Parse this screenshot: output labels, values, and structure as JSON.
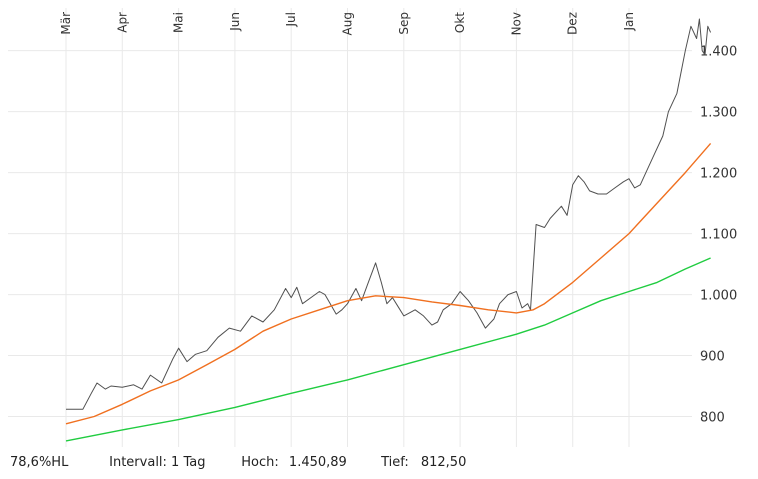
{
  "chart_data": {
    "type": "line",
    "x_labels": [
      "Mär",
      "Apr",
      "Mai",
      "Jun",
      "Jul",
      "Aug",
      "Sep",
      "Okt",
      "Nov",
      "Dez",
      "Jan"
    ],
    "y_ticks": [
      "800",
      "900",
      "1.000",
      "1.100",
      "1.200",
      "1.300",
      "1.400"
    ],
    "ylim": [
      750,
      1470
    ],
    "grid": true,
    "series": [
      {
        "color": "#505050",
        "points": [
          [
            0,
            812
          ],
          [
            0.3,
            812
          ],
          [
            0.45,
            838
          ],
          [
            0.55,
            855
          ],
          [
            0.7,
            845
          ],
          [
            0.8,
            850
          ],
          [
            1.0,
            848
          ],
          [
            1.2,
            852
          ],
          [
            1.35,
            845
          ],
          [
            1.5,
            868
          ],
          [
            1.7,
            855
          ],
          [
            1.9,
            895
          ],
          [
            2.0,
            912
          ],
          [
            2.15,
            890
          ],
          [
            2.3,
            902
          ],
          [
            2.5,
            908
          ],
          [
            2.7,
            930
          ],
          [
            2.9,
            945
          ],
          [
            3.1,
            940
          ],
          [
            3.3,
            965
          ],
          [
            3.5,
            955
          ],
          [
            3.7,
            975
          ],
          [
            3.9,
            1010
          ],
          [
            4.0,
            995
          ],
          [
            4.1,
            1012
          ],
          [
            4.2,
            985
          ],
          [
            4.35,
            995
          ],
          [
            4.5,
            1005
          ],
          [
            4.6,
            1000
          ],
          [
            4.8,
            968
          ],
          [
            4.9,
            975
          ],
          [
            5.0,
            985
          ],
          [
            5.15,
            1010
          ],
          [
            5.25,
            990
          ],
          [
            5.35,
            1015
          ],
          [
            5.5,
            1052
          ],
          [
            5.6,
            1020
          ],
          [
            5.7,
            985
          ],
          [
            5.8,
            995
          ],
          [
            5.9,
            980
          ],
          [
            6.0,
            965
          ],
          [
            6.1,
            970
          ],
          [
            6.2,
            975
          ],
          [
            6.35,
            965
          ],
          [
            6.5,
            950
          ],
          [
            6.6,
            955
          ],
          [
            6.7,
            975
          ],
          [
            6.85,
            985
          ],
          [
            7.0,
            1005
          ],
          [
            7.15,
            990
          ],
          [
            7.3,
            970
          ],
          [
            7.45,
            945
          ],
          [
            7.6,
            960
          ],
          [
            7.7,
            985
          ],
          [
            7.85,
            1000
          ],
          [
            8.0,
            1005
          ],
          [
            8.1,
            978
          ],
          [
            8.2,
            985
          ],
          [
            8.25,
            975
          ],
          [
            8.35,
            1115
          ],
          [
            8.5,
            1110
          ],
          [
            8.6,
            1125
          ],
          [
            8.8,
            1145
          ],
          [
            8.9,
            1130
          ],
          [
            9.0,
            1180
          ],
          [
            9.1,
            1195
          ],
          [
            9.2,
            1185
          ],
          [
            9.3,
            1170
          ],
          [
            9.45,
            1165
          ],
          [
            9.6,
            1165
          ],
          [
            9.75,
            1175
          ],
          [
            9.9,
            1185
          ],
          [
            10.0,
            1190
          ],
          [
            10.1,
            1175
          ],
          [
            10.2,
            1180
          ],
          [
            10.3,
            1200
          ],
          [
            10.45,
            1230
          ],
          [
            10.6,
            1260
          ],
          [
            10.7,
            1300
          ],
          [
            10.85,
            1330
          ],
          [
            11.0,
            1400
          ],
          [
            11.1,
            1440
          ],
          [
            11.2,
            1420
          ],
          [
            11.25,
            1452
          ],
          [
            11.3,
            1400
          ],
          [
            11.35,
            1393
          ],
          [
            11.4,
            1440
          ],
          [
            11.45,
            1430
          ]
        ]
      },
      {
        "color": "#f07020",
        "points": [
          [
            0,
            788
          ],
          [
            0.5,
            800
          ],
          [
            1.0,
            820
          ],
          [
            1.5,
            842
          ],
          [
            2.0,
            860
          ],
          [
            2.5,
            885
          ],
          [
            3.0,
            910
          ],
          [
            3.5,
            940
          ],
          [
            4.0,
            960
          ],
          [
            4.5,
            975
          ],
          [
            5.0,
            990
          ],
          [
            5.5,
            998
          ],
          [
            6.0,
            995
          ],
          [
            6.5,
            988
          ],
          [
            7.0,
            982
          ],
          [
            7.5,
            975
          ],
          [
            8.0,
            970
          ],
          [
            8.3,
            975
          ],
          [
            8.5,
            985
          ],
          [
            9.0,
            1020
          ],
          [
            9.5,
            1060
          ],
          [
            10.0,
            1100
          ],
          [
            10.5,
            1150
          ],
          [
            11.0,
            1200
          ],
          [
            11.45,
            1248
          ]
        ]
      },
      {
        "color": "#20cc40",
        "points": [
          [
            0,
            760
          ],
          [
            1.0,
            778
          ],
          [
            2.0,
            795
          ],
          [
            3.0,
            815
          ],
          [
            4.0,
            838
          ],
          [
            5.0,
            860
          ],
          [
            6.0,
            885
          ],
          [
            7.0,
            910
          ],
          [
            8.0,
            935
          ],
          [
            8.5,
            950
          ],
          [
            9.0,
            970
          ],
          [
            9.5,
            990
          ],
          [
            10.0,
            1005
          ],
          [
            10.5,
            1020
          ],
          [
            11.0,
            1042
          ],
          [
            11.45,
            1060
          ]
        ]
      }
    ]
  },
  "footer": {
    "range": "78,6%HL",
    "interval": "Intervall: 1 Tag",
    "high_label": "Hoch:",
    "high_value": "1.450,89",
    "low_label": "Tief:",
    "low_value": "812,50"
  }
}
